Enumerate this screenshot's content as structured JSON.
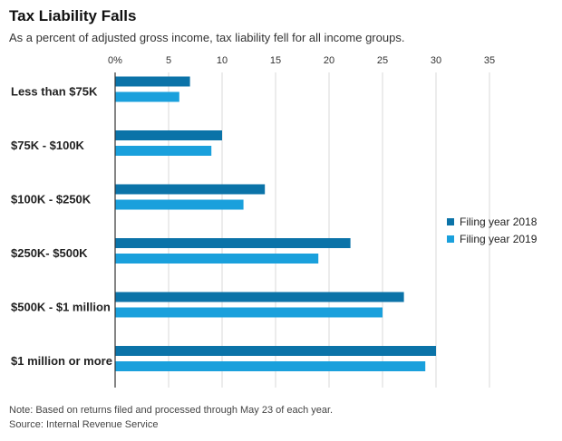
{
  "header": {
    "title": "Tax Liability Falls",
    "subtitle": "As a percent of adjusted gross income, tax liability fell for all income groups."
  },
  "footer": {
    "note": "Note: Based on returns filed and processed through May 23 of each year.",
    "source": "Source: Internal Revenue Service"
  },
  "colors": {
    "series_2018": "#0b73a8",
    "series_2019": "#1aa0dc",
    "grid": "#d9d9d9",
    "axis": "#333333"
  },
  "chart_data": {
    "type": "bar",
    "orientation": "horizontal",
    "title": "Tax Liability Falls",
    "subtitle": "As a percent of adjusted gross income, tax liability fell for all income groups.",
    "categories": [
      "Less than $75K",
      "$75K - $100K",
      "$100K - $250K",
      "$250K- $500K",
      "$500K - $1 million",
      "$1 million or more"
    ],
    "series": [
      {
        "name": "Filing year 2018",
        "values": [
          7,
          10,
          14,
          22,
          27,
          30
        ]
      },
      {
        "name": "Filing year 2019",
        "values": [
          6,
          9,
          12,
          19,
          25,
          29
        ]
      }
    ],
    "xlim": [
      0,
      35
    ],
    "tick_values": [
      0,
      5,
      10,
      15,
      20,
      25,
      30,
      35
    ],
    "tick_labels": [
      "0%",
      "5",
      "10",
      "15",
      "20",
      "25",
      "30",
      "35"
    ],
    "grid": true,
    "legend": {
      "position": "right",
      "entries": [
        "Filing year 2018",
        "Filing year 2019"
      ]
    }
  }
}
